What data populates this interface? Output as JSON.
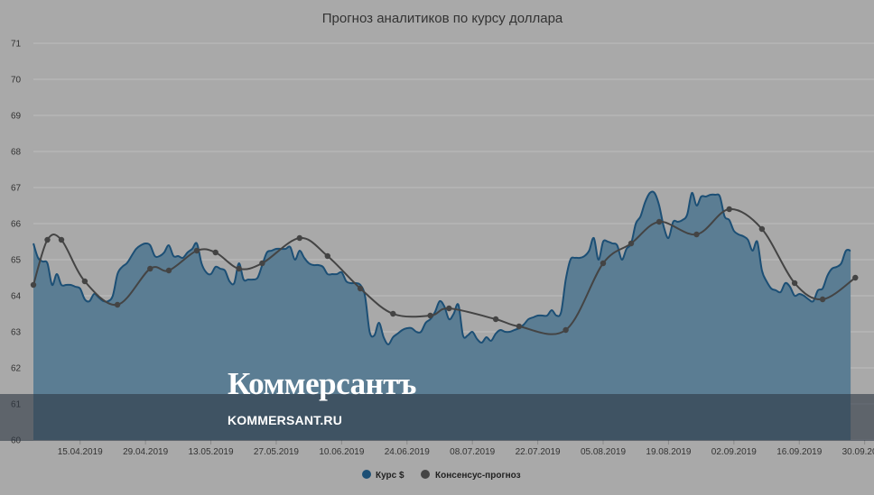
{
  "chart_data": {
    "type": "area",
    "title": "Прогноз аналитиков по курсу доллара",
    "xlabel": "",
    "ylabel": "",
    "ylim": [
      60,
      71
    ],
    "y_ticks": [
      "60",
      "61",
      "62",
      "63",
      "64",
      "65",
      "66",
      "67",
      "68",
      "69",
      "70",
      "71"
    ],
    "x_ticks": [
      "15.04.2019",
      "29.04.2019",
      "13.05.2019",
      "27.05.2019",
      "10.06.2019",
      "24.06.2019",
      "08.07.2019",
      "22.07.2019",
      "05.08.2019",
      "19.08.2019",
      "02.09.2019",
      "16.09.2019",
      "30.09.2019"
    ],
    "grid": true,
    "legend_position": "bottom",
    "series": [
      {
        "name": "Курс $",
        "type": "area",
        "color": "#1c4f75",
        "fill": "#5b7d93",
        "points": [
          [
            "2019-04-05",
            65.45
          ],
          [
            "2019-04-06",
            65.05
          ],
          [
            "2019-04-07",
            64.95
          ],
          [
            "2019-04-08",
            64.9
          ],
          [
            "2019-04-09",
            64.3
          ],
          [
            "2019-04-10",
            64.6
          ],
          [
            "2019-04-11",
            64.3
          ],
          [
            "2019-04-12",
            64.3
          ],
          [
            "2019-04-13",
            64.3
          ],
          [
            "2019-04-14",
            64.25
          ],
          [
            "2019-04-15",
            64.2
          ],
          [
            "2019-04-16",
            63.9
          ],
          [
            "2019-04-17",
            63.85
          ],
          [
            "2019-04-18",
            64.05
          ],
          [
            "2019-04-19",
            63.95
          ],
          [
            "2019-04-20",
            63.85
          ],
          [
            "2019-04-21",
            63.85
          ],
          [
            "2019-04-22",
            64.0
          ],
          [
            "2019-04-23",
            64.6
          ],
          [
            "2019-04-24",
            64.8
          ],
          [
            "2019-04-25",
            64.9
          ],
          [
            "2019-04-26",
            65.1
          ],
          [
            "2019-04-27",
            65.3
          ],
          [
            "2019-04-28",
            65.4
          ],
          [
            "2019-04-29",
            65.45
          ],
          [
            "2019-04-30",
            65.4
          ],
          [
            "2019-05-01",
            65.1
          ],
          [
            "2019-05-02",
            65.1
          ],
          [
            "2019-05-03",
            65.2
          ],
          [
            "2019-05-04",
            65.4
          ],
          [
            "2019-05-05",
            65.1
          ],
          [
            "2019-05-06",
            65.1
          ],
          [
            "2019-05-07",
            65.05
          ],
          [
            "2019-05-08",
            65.2
          ],
          [
            "2019-05-09",
            65.3
          ],
          [
            "2019-05-10",
            65.45
          ],
          [
            "2019-05-11",
            64.9
          ],
          [
            "2019-05-12",
            64.65
          ],
          [
            "2019-05-13",
            64.6
          ],
          [
            "2019-05-14",
            64.8
          ],
          [
            "2019-05-15",
            64.75
          ],
          [
            "2019-05-16",
            64.7
          ],
          [
            "2019-05-17",
            64.4
          ],
          [
            "2019-05-18",
            64.35
          ],
          [
            "2019-05-19",
            64.9
          ],
          [
            "2019-05-20",
            64.45
          ],
          [
            "2019-05-21",
            64.45
          ],
          [
            "2019-05-22",
            64.45
          ],
          [
            "2019-05-23",
            64.5
          ],
          [
            "2019-05-24",
            64.85
          ],
          [
            "2019-05-25",
            65.2
          ],
          [
            "2019-05-26",
            65.25
          ],
          [
            "2019-05-27",
            65.3
          ],
          [
            "2019-05-28",
            65.3
          ],
          [
            "2019-05-29",
            65.3
          ],
          [
            "2019-05-30",
            65.35
          ],
          [
            "2019-05-31",
            65.0
          ],
          [
            "2019-06-01",
            65.25
          ],
          [
            "2019-06-02",
            65.05
          ],
          [
            "2019-06-03",
            64.9
          ],
          [
            "2019-06-04",
            64.85
          ],
          [
            "2019-06-05",
            64.85
          ],
          [
            "2019-06-06",
            64.8
          ],
          [
            "2019-06-07",
            64.6
          ],
          [
            "2019-06-08",
            64.6
          ],
          [
            "2019-06-09",
            64.6
          ],
          [
            "2019-06-10",
            64.65
          ],
          [
            "2019-06-11",
            64.4
          ],
          [
            "2019-06-12",
            64.35
          ],
          [
            "2019-06-13",
            64.35
          ],
          [
            "2019-06-14",
            64.3
          ],
          [
            "2019-06-15",
            64.0
          ],
          [
            "2019-06-16",
            63.0
          ],
          [
            "2019-06-17",
            62.9
          ],
          [
            "2019-06-18",
            63.25
          ],
          [
            "2019-06-19",
            62.85
          ],
          [
            "2019-06-20",
            62.65
          ],
          [
            "2019-06-21",
            62.85
          ],
          [
            "2019-06-22",
            62.95
          ],
          [
            "2019-06-23",
            63.05
          ],
          [
            "2019-06-24",
            63.1
          ],
          [
            "2019-06-25",
            63.1
          ],
          [
            "2019-06-26",
            63.0
          ],
          [
            "2019-06-27",
            63.0
          ],
          [
            "2019-06-28",
            63.25
          ],
          [
            "2019-06-29",
            63.35
          ],
          [
            "2019-06-30",
            63.55
          ],
          [
            "2019-07-01",
            63.85
          ],
          [
            "2019-07-02",
            63.7
          ],
          [
            "2019-07-03",
            63.35
          ],
          [
            "2019-07-04",
            63.5
          ],
          [
            "2019-07-05",
            63.75
          ],
          [
            "2019-07-06",
            62.9
          ],
          [
            "2019-07-07",
            62.9
          ],
          [
            "2019-07-08",
            63.0
          ],
          [
            "2019-07-09",
            62.8
          ],
          [
            "2019-07-10",
            62.7
          ],
          [
            "2019-07-11",
            62.85
          ],
          [
            "2019-07-12",
            62.75
          ],
          [
            "2019-07-13",
            62.95
          ],
          [
            "2019-07-14",
            63.05
          ],
          [
            "2019-07-15",
            63.0
          ],
          [
            "2019-07-16",
            63.0
          ],
          [
            "2019-07-17",
            63.05
          ],
          [
            "2019-07-18",
            63.1
          ],
          [
            "2019-07-19",
            63.2
          ],
          [
            "2019-07-20",
            63.35
          ],
          [
            "2019-07-21",
            63.4
          ],
          [
            "2019-07-22",
            63.45
          ],
          [
            "2019-07-23",
            63.45
          ],
          [
            "2019-07-24",
            63.45
          ],
          [
            "2019-07-25",
            63.6
          ],
          [
            "2019-07-26",
            63.45
          ],
          [
            "2019-07-27",
            63.55
          ],
          [
            "2019-07-28",
            64.45
          ],
          [
            "2019-07-29",
            65.0
          ],
          [
            "2019-07-30",
            65.05
          ],
          [
            "2019-07-31",
            65.05
          ],
          [
            "2019-08-01",
            65.1
          ],
          [
            "2019-08-02",
            65.25
          ],
          [
            "2019-08-03",
            65.6
          ],
          [
            "2019-08-04",
            65.0
          ],
          [
            "2019-08-05",
            65.5
          ],
          [
            "2019-08-06",
            65.5
          ],
          [
            "2019-08-07",
            65.45
          ],
          [
            "2019-08-08",
            65.4
          ],
          [
            "2019-08-09",
            65.0
          ],
          [
            "2019-08-10",
            65.3
          ],
          [
            "2019-08-11",
            65.45
          ],
          [
            "2019-08-12",
            66.0
          ],
          [
            "2019-08-13",
            66.2
          ],
          [
            "2019-08-14",
            66.6
          ],
          [
            "2019-08-15",
            66.85
          ],
          [
            "2019-08-16",
            66.85
          ],
          [
            "2019-08-17",
            66.5
          ],
          [
            "2019-08-18",
            65.9
          ],
          [
            "2019-08-19",
            65.6
          ],
          [
            "2019-08-20",
            66.05
          ],
          [
            "2019-08-21",
            66.05
          ],
          [
            "2019-08-22",
            66.1
          ],
          [
            "2019-08-23",
            66.25
          ],
          [
            "2019-08-24",
            66.85
          ],
          [
            "2019-08-25",
            66.5
          ],
          [
            "2019-08-26",
            66.75
          ],
          [
            "2019-08-27",
            66.75
          ],
          [
            "2019-08-28",
            66.8
          ],
          [
            "2019-08-29",
            66.8
          ],
          [
            "2019-08-30",
            66.75
          ],
          [
            "2019-08-31",
            66.2
          ],
          [
            "2019-09-01",
            66.1
          ],
          [
            "2019-09-02",
            65.8
          ],
          [
            "2019-09-03",
            65.7
          ],
          [
            "2019-09-04",
            65.65
          ],
          [
            "2019-09-05",
            65.55
          ],
          [
            "2019-09-06",
            65.25
          ],
          [
            "2019-09-07",
            65.5
          ],
          [
            "2019-09-08",
            64.7
          ],
          [
            "2019-09-09",
            64.4
          ],
          [
            "2019-09-10",
            64.2
          ],
          [
            "2019-09-11",
            64.15
          ],
          [
            "2019-09-12",
            64.1
          ],
          [
            "2019-09-13",
            64.35
          ],
          [
            "2019-09-14",
            64.25
          ],
          [
            "2019-09-15",
            64.0
          ],
          [
            "2019-09-16",
            64.05
          ],
          [
            "2019-09-17",
            64.0
          ],
          [
            "2019-09-18",
            63.9
          ],
          [
            "2019-09-19",
            63.85
          ],
          [
            "2019-09-20",
            64.15
          ],
          [
            "2019-09-21",
            64.2
          ],
          [
            "2019-09-22",
            64.55
          ],
          [
            "2019-09-23",
            64.75
          ],
          [
            "2019-09-24",
            64.8
          ],
          [
            "2019-09-25",
            64.9
          ],
          [
            "2019-09-26",
            65.25
          ],
          [
            "2019-09-27",
            65.25
          ]
        ]
      },
      {
        "name": "Консенсус-прогноз",
        "type": "line",
        "color": "#444444",
        "points": [
          [
            "2019-04-05",
            64.3
          ],
          [
            "2019-04-08",
            65.55
          ],
          [
            "2019-04-11",
            65.55
          ],
          [
            "2019-04-16",
            64.4
          ],
          [
            "2019-04-23",
            63.75
          ],
          [
            "2019-04-30",
            64.75
          ],
          [
            "2019-05-04",
            64.7
          ],
          [
            "2019-05-10",
            65.25
          ],
          [
            "2019-05-14",
            65.2
          ],
          [
            "2019-05-19",
            64.75
          ],
          [
            "2019-05-24",
            64.9
          ],
          [
            "2019-06-01",
            65.6
          ],
          [
            "2019-06-07",
            65.1
          ],
          [
            "2019-06-14",
            64.2
          ],
          [
            "2019-06-21",
            63.5
          ],
          [
            "2019-06-29",
            63.45
          ],
          [
            "2019-07-03",
            63.65
          ],
          [
            "2019-07-13",
            63.35
          ],
          [
            "2019-07-18",
            63.15
          ],
          [
            "2019-07-28",
            63.05
          ],
          [
            "2019-08-05",
            64.9
          ],
          [
            "2019-08-11",
            65.45
          ],
          [
            "2019-08-17",
            66.05
          ],
          [
            "2019-08-25",
            65.7
          ],
          [
            "2019-09-01",
            66.4
          ],
          [
            "2019-09-08",
            65.85
          ],
          [
            "2019-09-15",
            64.35
          ],
          [
            "2019-09-21",
            63.9
          ],
          [
            "2019-09-28",
            64.5
          ]
        ]
      }
    ]
  },
  "watermark": {
    "name": "Коммерсантъ",
    "url": "KOMMERSANT.RU"
  }
}
